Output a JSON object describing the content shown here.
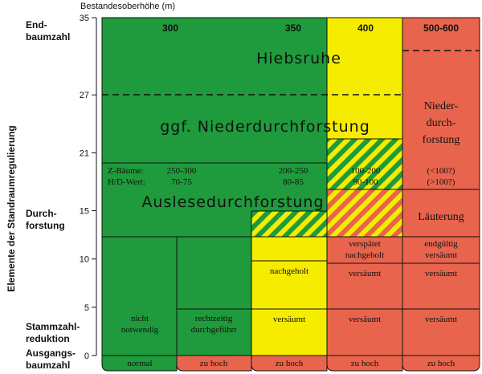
{
  "axis": {
    "title": "Bestandesoberhöhe (m)",
    "ticks": [
      0,
      5,
      10,
      15,
      21,
      27,
      35
    ],
    "lim": [
      0,
      35
    ]
  },
  "side_label": "Elemente der Standraumregulierung",
  "row_labels": [
    [
      "End-",
      "baumzahl"
    ],
    [
      "Durch-",
      "forstung"
    ],
    [
      "Stammzahl-",
      "reduktion"
    ],
    [
      "Ausgangs-",
      "baumzahl"
    ]
  ],
  "column_headers": [
    "300",
    "350",
    "400",
    "500-600"
  ],
  "measures": [
    "Hiebsruhe",
    "ggf. Niederdurchforstung",
    "Auslesedurchforstung"
  ],
  "targets": {
    "labels": [
      "Z-Bäume:",
      "H/D-Wert:"
    ],
    "values": [
      [
        "250-300",
        "70-75"
      ],
      [
        "200-250",
        "80-85"
      ],
      [
        "100-200",
        "90-100"
      ],
      [
        "(<100?)",
        "(>100?)"
      ]
    ]
  },
  "red_measure": [
    "Nieder-",
    "durch-",
    "forstung"
  ],
  "laeuterung": "Läuterung",
  "cells": [
    [
      "nicht",
      "notwendig"
    ],
    [
      "rechtzeitig",
      "durchgeführt"
    ],
    [
      "nachgeholt",
      "versäumt"
    ],
    [
      "verspätet",
      "nachgeholt",
      "versäumt",
      "versäumt"
    ],
    [
      "endgültig",
      "versäumt",
      "versäumt",
      "versäumt"
    ]
  ],
  "bottom": [
    "normal",
    "zu hoch",
    "zu hoch",
    "zu hoch",
    "zu hoch"
  ]
}
